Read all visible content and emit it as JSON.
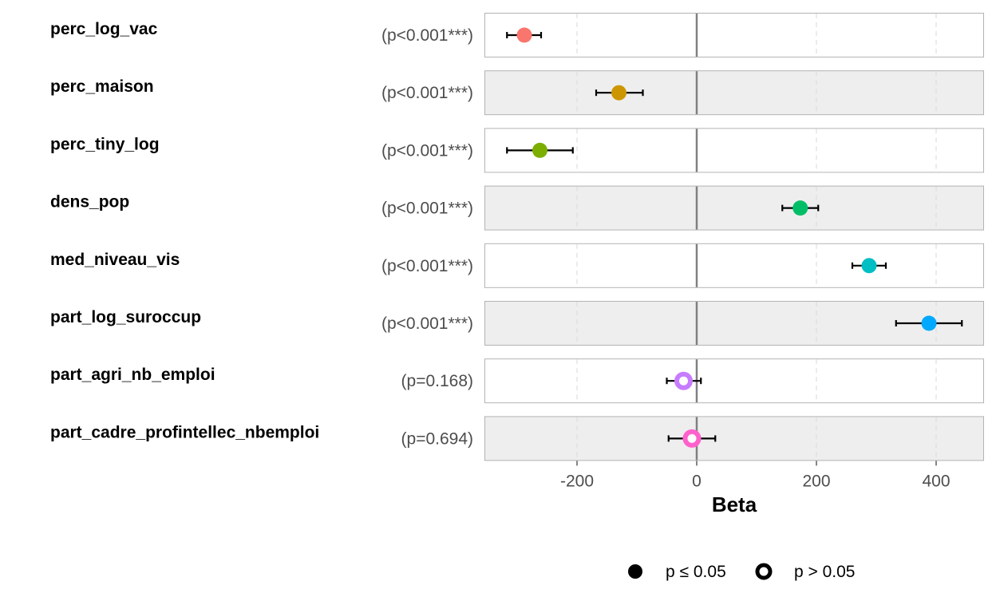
{
  "chart_data": {
    "type": "forest",
    "xlabel": "Beta",
    "xlim": [
      -355,
      480
    ],
    "xticks": [
      -200,
      0,
      200,
      400
    ],
    "xtick_labels": [
      "-200",
      "0",
      "200",
      "400"
    ],
    "grid": true,
    "reference_line": 0,
    "rows": [
      {
        "label": "perc_log_vac",
        "p_text": "(p<0.001***)",
        "estimate": -288,
        "ci_low": -317,
        "ci_high": -260,
        "color": "#F8766D",
        "significant": true
      },
      {
        "label": "perc_maison",
        "p_text": "(p<0.001***)",
        "estimate": -130,
        "ci_low": -168,
        "ci_high": -90,
        "color": "#CD9600",
        "significant": true
      },
      {
        "label": "perc_tiny_log",
        "p_text": "(p<0.001***)",
        "estimate": -262,
        "ci_low": -317,
        "ci_high": -207,
        "color": "#7CAE00",
        "significant": true
      },
      {
        "label": "dens_pop",
        "p_text": "(p<0.001***)",
        "estimate": 173,
        "ci_low": 143,
        "ci_high": 203,
        "color": "#00BE67",
        "significant": true
      },
      {
        "label": "med_niveau_vis",
        "p_text": "(p<0.001***)",
        "estimate": 288,
        "ci_low": 260,
        "ci_high": 316,
        "color": "#00BFC4",
        "significant": true
      },
      {
        "label": "part_log_suroccup",
        "p_text": "(p<0.001***)",
        "estimate": 388,
        "ci_low": 333,
        "ci_high": 443,
        "color": "#00A9FF",
        "significant": true
      },
      {
        "label": "part_agri_nb_emploi",
        "p_text": "(p=0.168)",
        "estimate": -22,
        "ci_low": -50,
        "ci_high": 7,
        "color": "#C77CFF",
        "significant": false
      },
      {
        "label": "part_cadre_profintellec_nbemploi",
        "p_text": "(p=0.694)",
        "estimate": -8,
        "ci_low": -47,
        "ci_high": 31,
        "color": "#FF61CC",
        "significant": false
      }
    ]
  },
  "legend": {
    "placement": "bottom",
    "items": [
      {
        "label": "p ≤ 0.05",
        "style": "filled"
      },
      {
        "label": "p > 0.05",
        "style": "hollow"
      }
    ]
  },
  "colors": {
    "panel_alt": "#EEEEEE",
    "panel_border": "#B3B3B3",
    "reference_line": "#808080",
    "grid": "#DEDEDE"
  }
}
